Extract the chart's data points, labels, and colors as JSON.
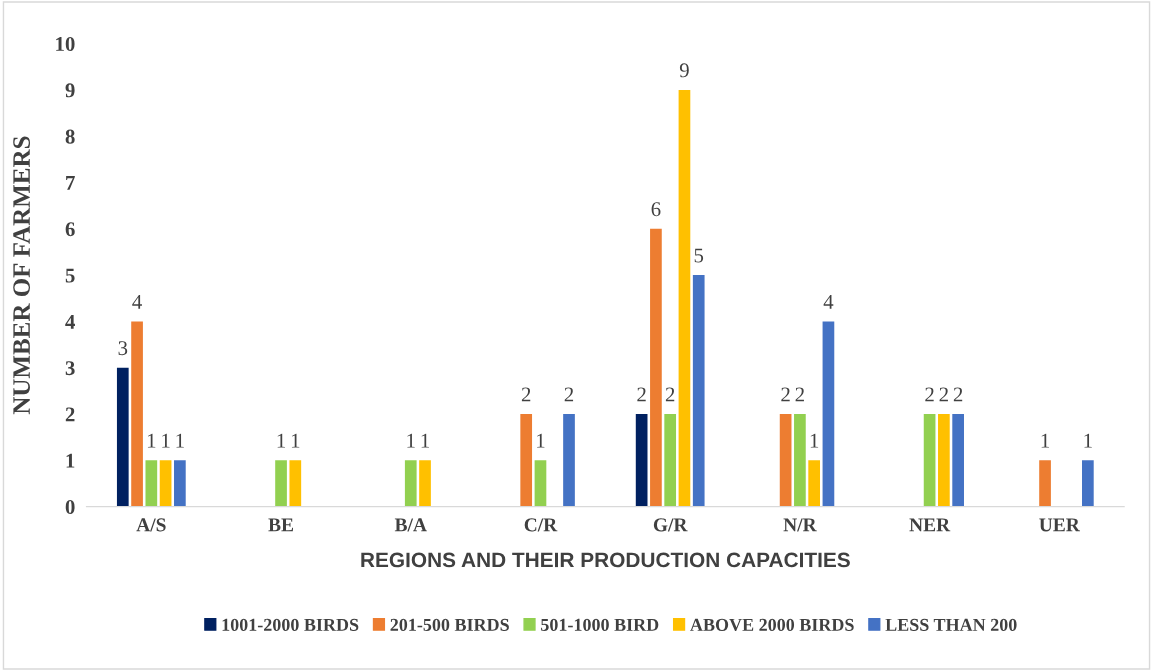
{
  "chart_data": {
    "type": "bar",
    "xlabel": "REGIONS AND THEIR PRODUCTION CAPACITIES",
    "ylabel": "NUMBER OF FARMERS",
    "categories": [
      "A/S",
      "BE",
      "B/A",
      "C/R",
      "G/R",
      "N/R",
      "NER",
      "UER"
    ],
    "series": [
      {
        "name": "1001-2000 BIRDS",
        "color": "#002060",
        "values": [
          3,
          null,
          null,
          null,
          2,
          null,
          null,
          null
        ]
      },
      {
        "name": "201-500 BIRDS",
        "color": "#ed7d31",
        "values": [
          4,
          null,
          null,
          2,
          6,
          2,
          null,
          1
        ]
      },
      {
        "name": "501-1000 BIRD",
        "color": "#92d050",
        "values": [
          1,
          1,
          1,
          1,
          2,
          2,
          2,
          null
        ]
      },
      {
        "name": "ABOVE 2000 BIRDS",
        "color": "#ffc000",
        "values": [
          1,
          1,
          1,
          null,
          9,
          1,
          2,
          null
        ]
      },
      {
        "name": "LESS THAN 200",
        "color": "#4472c4",
        "values": [
          1,
          null,
          null,
          2,
          5,
          4,
          2,
          1
        ]
      }
    ],
    "ylim": [
      0,
      10
    ],
    "yticks": [
      0,
      1,
      2,
      3,
      4,
      5,
      6,
      7,
      8,
      9,
      10
    ],
    "grid": false,
    "legend": "bottom",
    "data_labels": true
  }
}
